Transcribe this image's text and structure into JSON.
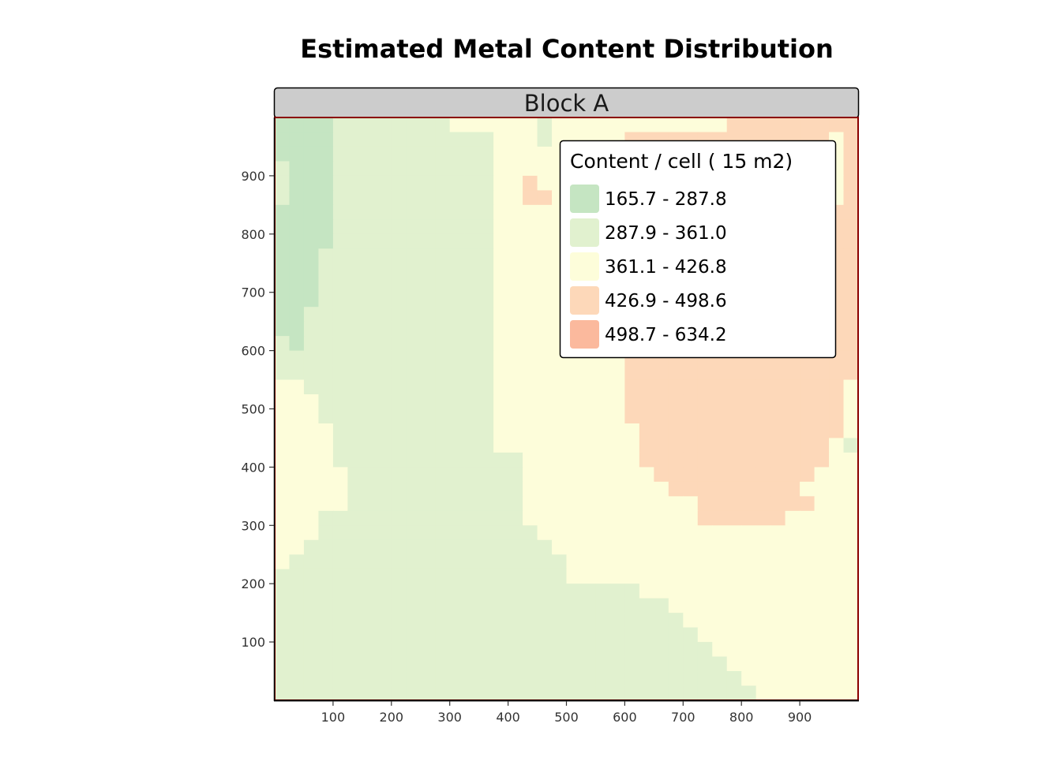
{
  "chart_data": {
    "type": "heatmap",
    "title": "Estimated Metal Content Distribution",
    "facet": "Block A",
    "xlabel": "",
    "ylabel": "",
    "x_ticks": [
      100,
      200,
      300,
      400,
      500,
      600,
      700,
      800,
      900
    ],
    "y_ticks": [
      100,
      200,
      300,
      400,
      500,
      600,
      700,
      800,
      900
    ],
    "xlim": [
      0,
      1000
    ],
    "ylim": [
      0,
      1000
    ],
    "cell_size": 25,
    "grid_origin": "top-left",
    "legend": {
      "title": "Content / cell ( 15 m2)",
      "placement": "top-right",
      "classes": [
        {
          "label": "165.7 - 287.8",
          "color": "#c5e5c2"
        },
        {
          "label": "287.9 - 361.0",
          "color": "#e1f1cf"
        },
        {
          "label": "361.1 - 426.8",
          "color": "#fdfdda"
        },
        {
          "label": "426.9 - 498.6",
          "color": "#fdd8b9"
        },
        {
          "label": "498.7 - 634.2",
          "color": "#fbb99d"
        }
      ]
    },
    "classes_by_row": [
      "1111222222223333332333333333333444444444",
      "1111222222222223332333334444444444444434",
      "1111222222222223333333344444444444444434",
      "2111222222222223333333333444444444444434",
      "2111222222222223343333333444444444444434",
      "2111222222222223344333333333333444444434",
      "1111222222222223333333333333333444444444",
      "1111222222222223333333333333333444444444",
      "1111222222222223333333333333333444444444",
      "1112222222222223333333333333333444444444",
      "1112222222222223333333333333333444444444",
      "1112222222222223333333333333333444444444",
      "1112222222222223333333333333333444444444",
      "1122222222222223333333333333333444444444",
      "1122222222222223333333334444444444444444",
      "2122222222222223333333334444444444444444",
      "2222222222222223333333334444444444444444",
      "2222222222222223333333334444444444444444",
      "3322222222222223333333334444444444444443",
      "3332222222222223333333334444444444444443",
      "3332222222222223333333334444444444444443",
      "3333222222222223333333333444444444444443",
      "3333222222222223333333333444444444444432",
      "3333222222222222233333333444444444444433",
      "3333322222222222233333333344444444444333",
      "3333322222222222233333333334444444443333",
      "3333322222222222233333333333344444444333",
      "3332222222222222233333333333344444433333",
      "3332222222222222223333333333333333333333",
      "3322222222222222222333333333333333333333",
      "3222222222222222222233333333333333333333",
      "2222222222222222222233333333333333333333",
      "2222222222222222222222222333333333333333",
      "2222222222222222222222222223333333333333",
      "2222222222222222222222222222333333333333",
      "2222222222222222222222222222233333333333",
      "2222222222222222222222222222223333333333",
      "2222222222222222222222222222222333333333",
      "2222222222222222222222222222222233333333",
      "2222222222222222222222222222222223333333"
    ]
  }
}
